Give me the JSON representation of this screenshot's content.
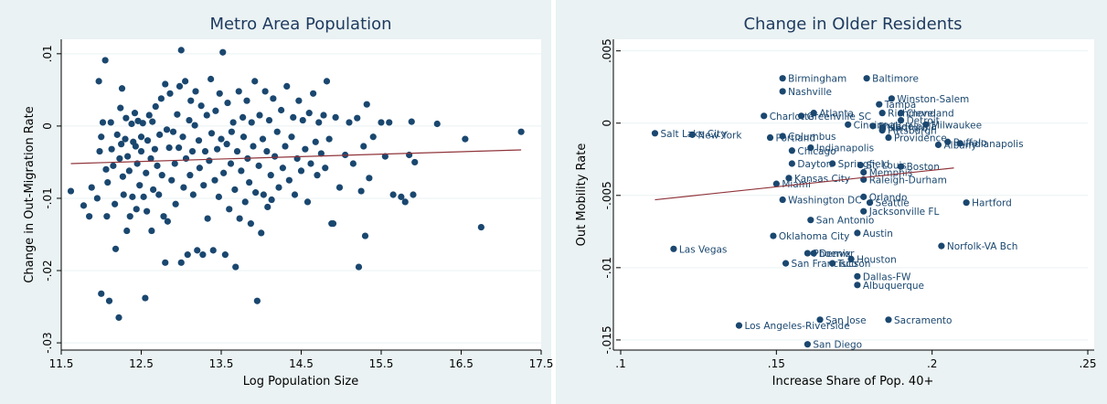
{
  "chart_data": [
    {
      "type": "scatter",
      "title": "Metro Area Population",
      "xlabel": "Log Population Size",
      "ylabel": "Change in Out-Migration Rate",
      "xlim": [
        11.5,
        17.5
      ],
      "ylim": [
        -0.031,
        0.012
      ],
      "xticks": [
        11.5,
        12.5,
        13.5,
        14.5,
        15.5,
        16.5,
        17.5
      ],
      "xtick_labels": [
        "11.5",
        "12.5",
        "13.5",
        "14.5",
        "15.5",
        "16.5",
        "17.5"
      ],
      "yticks": [
        -0.03,
        -0.02,
        -0.01,
        0,
        0.01
      ],
      "ytick_labels": [
        "-.03",
        "-.02",
        "-.01",
        "0",
        ".01"
      ],
      "grid": true,
      "fit_line": {
        "x": [
          11.62,
          17.25
        ],
        "y": [
          -0.0052,
          -0.0033
        ]
      },
      "points": [
        [
          11.62,
          -0.009
        ],
        [
          11.78,
          -0.011
        ],
        [
          11.85,
          -0.0125
        ],
        [
          11.88,
          -0.0085
        ],
        [
          11.95,
          -0.01
        ],
        [
          11.97,
          0.0062
        ],
        [
          11.98,
          -0.0035
        ],
        [
          12.0,
          -0.0232
        ],
        [
          12.0,
          -0.0015
        ],
        [
          12.02,
          0.0005
        ],
        [
          12.05,
          0.0091
        ],
        [
          12.06,
          -0.006
        ],
        [
          12.07,
          -0.0125
        ],
        [
          12.08,
          -0.0078
        ],
        [
          12.1,
          -0.0242
        ],
        [
          12.12,
          0.0005
        ],
        [
          12.13,
          -0.0032
        ],
        [
          12.15,
          -0.0055
        ],
        [
          12.17,
          -0.0108
        ],
        [
          12.18,
          -0.017
        ],
        [
          12.2,
          -0.0012
        ],
        [
          12.22,
          -0.0265
        ],
        [
          12.23,
          -0.0045
        ],
        [
          12.24,
          0.0025
        ],
        [
          12.25,
          -0.0025
        ],
        [
          12.26,
          0.0052
        ],
        [
          12.27,
          -0.007
        ],
        [
          12.28,
          -0.0095
        ],
        [
          12.3,
          -0.0018
        ],
        [
          12.31,
          0.0011
        ],
        [
          12.32,
          -0.0145
        ],
        [
          12.33,
          -0.0042
        ],
        [
          12.35,
          -0.0062
        ],
        [
          12.36,
          -0.0125
        ],
        [
          12.38,
          0.0003
        ],
        [
          12.39,
          -0.0098
        ],
        [
          12.4,
          -0.0022
        ],
        [
          12.42,
          0.0018
        ],
        [
          12.43,
          -0.0028
        ],
        [
          12.44,
          -0.0115
        ],
        [
          12.45,
          -0.0052
        ],
        [
          12.46,
          0.0007
        ],
        [
          12.48,
          -0.0082
        ],
        [
          12.5,
          -0.0035
        ],
        [
          12.5,
          -0.0015
        ],
        [
          12.52,
          0.0004
        ],
        [
          12.53,
          -0.0098
        ],
        [
          12.55,
          -0.0238
        ],
        [
          12.56,
          -0.0065
        ],
        [
          12.57,
          -0.0118
        ],
        [
          12.58,
          -0.002
        ],
        [
          12.6,
          0.0015
        ],
        [
          12.62,
          -0.0045
        ],
        [
          12.63,
          -0.0145
        ],
        [
          12.64,
          0.0006
        ],
        [
          12.65,
          -0.0088
        ],
        [
          12.67,
          -0.0032
        ],
        [
          12.68,
          0.0027
        ],
        [
          12.7,
          -0.0055
        ],
        [
          12.72,
          -0.0095
        ],
        [
          12.73,
          -0.0012
        ],
        [
          12.75,
          0.0038
        ],
        [
          12.76,
          -0.0068
        ],
        [
          12.78,
          -0.0125
        ],
        [
          12.8,
          0.0058
        ],
        [
          12.8,
          -0.0189
        ],
        [
          12.82,
          -0.0005
        ],
        [
          12.83,
          -0.0132
        ],
        [
          12.85,
          -0.003
        ],
        [
          12.86,
          0.0045
        ],
        [
          12.88,
          -0.0075
        ],
        [
          12.9,
          -0.0008
        ],
        [
          12.92,
          -0.0052
        ],
        [
          12.93,
          -0.0108
        ],
        [
          12.95,
          0.0016
        ],
        [
          12.97,
          -0.003
        ],
        [
          12.98,
          0.0055
        ],
        [
          13.0,
          0.0105
        ],
        [
          13.0,
          -0.0189
        ],
        [
          13.02,
          -0.0015
        ],
        [
          13.03,
          -0.0085
        ],
        [
          13.05,
          0.0062
        ],
        [
          13.06,
          -0.0045
        ],
        [
          13.08,
          -0.0178
        ],
        [
          13.1,
          0.0008
        ],
        [
          13.11,
          -0.0068
        ],
        [
          13.12,
          0.0035
        ],
        [
          13.14,
          -0.0035
        ],
        [
          13.15,
          -0.0095
        ],
        [
          13.17,
          0.0001
        ],
        [
          13.18,
          0.0048
        ],
        [
          13.2,
          -0.0172
        ],
        [
          13.22,
          -0.002
        ],
        [
          13.23,
          -0.0058
        ],
        [
          13.25,
          0.0028
        ],
        [
          13.27,
          -0.0178
        ],
        [
          13.28,
          -0.0082
        ],
        [
          13.3,
          -0.0035
        ],
        [
          13.32,
          0.0015
        ],
        [
          13.33,
          -0.0128
        ],
        [
          13.35,
          -0.0048
        ],
        [
          13.37,
          0.0065
        ],
        [
          13.38,
          -0.001
        ],
        [
          13.4,
          -0.0172
        ],
        [
          13.42,
          -0.0075
        ],
        [
          13.43,
          0.0021
        ],
        [
          13.45,
          -0.0032
        ],
        [
          13.47,
          -0.0098
        ],
        [
          13.48,
          0.0045
        ],
        [
          13.5,
          -0.0018
        ],
        [
          13.52,
          0.0102
        ],
        [
          13.53,
          -0.0065
        ],
        [
          13.55,
          -0.0178
        ],
        [
          13.57,
          -0.0025
        ],
        [
          13.58,
          0.0032
        ],
        [
          13.6,
          -0.0115
        ],
        [
          13.62,
          -0.0052
        ],
        [
          13.63,
          -0.0008
        ],
        [
          13.65,
          0.0005
        ],
        [
          13.67,
          -0.0088
        ],
        [
          13.68,
          -0.0195
        ],
        [
          13.7,
          -0.0035
        ],
        [
          13.72,
          0.0048
        ],
        [
          13.73,
          -0.0128
        ],
        [
          13.75,
          -0.0062
        ],
        [
          13.77,
          0.0012
        ],
        [
          13.78,
          -0.0015
        ],
        [
          13.8,
          -0.0105
        ],
        [
          13.82,
          0.0035
        ],
        [
          13.83,
          -0.0045
        ],
        [
          13.85,
          -0.0078
        ],
        [
          13.87,
          -0.0135
        ],
        [
          13.88,
          0.0005
        ],
        [
          13.9,
          -0.0028
        ],
        [
          13.92,
          0.0062
        ],
        [
          13.93,
          -0.0092
        ],
        [
          13.95,
          -0.0242
        ],
        [
          13.97,
          -0.0055
        ],
        [
          13.98,
          0.0015
        ],
        [
          14.0,
          -0.0148
        ],
        [
          14.02,
          -0.0018
        ],
        [
          14.03,
          -0.0095
        ],
        [
          14.05,
          0.0048
        ],
        [
          14.07,
          -0.0035
        ],
        [
          14.08,
          -0.0112
        ],
        [
          14.1,
          0.0008
        ],
        [
          14.12,
          -0.0068
        ],
        [
          14.13,
          -0.0102
        ],
        [
          14.15,
          0.0038
        ],
        [
          14.17,
          -0.0042
        ],
        [
          14.2,
          -0.0008
        ],
        [
          14.22,
          -0.0085
        ],
        [
          14.25,
          0.0022
        ],
        [
          14.27,
          -0.0058
        ],
        [
          14.3,
          -0.0028
        ],
        [
          14.32,
          0.0055
        ],
        [
          14.35,
          -0.0075
        ],
        [
          14.38,
          -0.0015
        ],
        [
          14.4,
          0.0012
        ],
        [
          14.42,
          -0.0095
        ],
        [
          14.45,
          -0.0045
        ],
        [
          14.47,
          0.0035
        ],
        [
          14.5,
          -0.0062
        ],
        [
          14.52,
          0.0008
        ],
        [
          14.55,
          -0.0032
        ],
        [
          14.58,
          -0.0105
        ],
        [
          14.6,
          0.0018
        ],
        [
          14.62,
          -0.0052
        ],
        [
          14.65,
          0.0045
        ],
        [
          14.68,
          -0.0022
        ],
        [
          14.7,
          -0.0068
        ],
        [
          14.72,
          0.0005
        ],
        [
          14.75,
          -0.0038
        ],
        [
          14.78,
          0.0015
        ],
        [
          14.8,
          -0.0058
        ],
        [
          14.82,
          0.0062
        ],
        [
          14.85,
          -0.0018
        ],
        [
          14.88,
          -0.0135
        ],
        [
          14.9,
          -0.0135
        ],
        [
          14.93,
          0.0012
        ],
        [
          14.98,
          -0.0085
        ],
        [
          15.05,
          -0.004
        ],
        [
          15.1,
          0.0005
        ],
        [
          15.15,
          -0.0052
        ],
        [
          15.2,
          0.0011
        ],
        [
          15.22,
          -0.0195
        ],
        [
          15.25,
          -0.009
        ],
        [
          15.28,
          -0.0028
        ],
        [
          15.3,
          -0.0152
        ],
        [
          15.32,
          0.003
        ],
        [
          15.35,
          -0.0072
        ],
        [
          15.4,
          -0.0015
        ],
        [
          15.5,
          0.0005
        ],
        [
          15.55,
          -0.0042
        ],
        [
          15.6,
          0.0005
        ],
        [
          15.65,
          -0.0095
        ],
        [
          15.75,
          -0.0098
        ],
        [
          15.8,
          -0.0105
        ],
        [
          15.85,
          -0.004
        ],
        [
          15.88,
          0.0006
        ],
        [
          15.9,
          -0.0095
        ],
        [
          15.92,
          -0.005
        ],
        [
          16.2,
          0.0003
        ],
        [
          16.55,
          -0.0018
        ],
        [
          16.75,
          -0.014
        ],
        [
          17.25,
          -0.0008
        ]
      ]
    },
    {
      "type": "scatter",
      "title": "Change in Older Residents",
      "xlabel": "Increase Share of Pop. 40+",
      "ylabel": "Out Mobility Rate",
      "xlim": [
        0.1,
        0.25
      ],
      "ylim": [
        -0.0157,
        0.0058
      ],
      "xticks": [
        0.1,
        0.15,
        0.2,
        0.25
      ],
      "xtick_labels": [
        ".1",
        ".15",
        ".2",
        ".25"
      ],
      "yticks": [
        -0.015,
        -0.01,
        -0.005,
        0,
        0.005
      ],
      "ytick_labels": [
        "-.015",
        "-.01",
        "-.005",
        "0",
        ".005"
      ],
      "grid": true,
      "fit_line": {
        "x": [
          0.111,
          0.207
        ],
        "y": [
          -0.0053,
          -0.0031
        ]
      },
      "points": [
        {
          "label": "Birmingham",
          "x": 0.152,
          "y": 0.0031
        },
        {
          "label": "Baltimore",
          "x": 0.179,
          "y": 0.0031
        },
        {
          "label": "Nashville",
          "x": 0.152,
          "y": 0.0022
        },
        {
          "label": "Winston-Salem",
          "x": 0.187,
          "y": 0.0017
        },
        {
          "label": "Tampa",
          "x": 0.183,
          "y": 0.0013
        },
        {
          "label": "Richmond",
          "x": 0.184,
          "y": 0.0007
        },
        {
          "label": "Cleveland",
          "x": 0.19,
          "y": 0.0007
        },
        {
          "label": "Atlanta",
          "x": 0.162,
          "y": 0.0007
        },
        {
          "label": "Charlotte",
          "x": 0.146,
          "y": 0.0005
        },
        {
          "label": "Greenville SC",
          "x": 0.158,
          "y": 0.0005
        },
        {
          "label": "Detroit",
          "x": 0.19,
          "y": 0.0002
        },
        {
          "label": "Milwaukee",
          "x": 0.198,
          "y": -0.0001
        },
        {
          "label": "Cincinnati",
          "x": 0.173,
          "y": -0.0001
        },
        {
          "label": "Philadelphia",
          "x": 0.181,
          "y": -0.0002
        },
        {
          "label": "Hartford?",
          "x": 0.184,
          "y": -0.0003
        },
        {
          "label": "Pittsburgh",
          "x": 0.184,
          "y": -0.0005
        },
        {
          "label": "Providence",
          "x": 0.186,
          "y": -0.001
        },
        {
          "label": "Salt Lake City",
          "x": 0.111,
          "y": -0.0007
        },
        {
          "label": "New York",
          "x": 0.123,
          "y": -0.0008
        },
        {
          "label": "Columbus",
          "x": 0.152,
          "y": -0.0009
        },
        {
          "label": "Portland",
          "x": 0.148,
          "y": -0.001
        },
        {
          "label": "Buffalo",
          "x": 0.205,
          "y": -0.0013
        },
        {
          "label": "Albany",
          "x": 0.202,
          "y": -0.0015
        },
        {
          "label": "Indianapolis",
          "x": 0.209,
          "y": -0.0014
        },
        {
          "label": "Indianapolis ",
          "x": 0.161,
          "y": -0.0017
        },
        {
          "label": "Chicago",
          "x": 0.155,
          "y": -0.0019
        },
        {
          "label": "Dayton",
          "x": 0.155,
          "y": -0.0028
        },
        {
          "label": "Springfield",
          "x": 0.168,
          "y": -0.0028
        },
        {
          "label": "St. Louis",
          "x": 0.177,
          "y": -0.0029
        },
        {
          "label": "Boston",
          "x": 0.19,
          "y": -0.003
        },
        {
          "label": "Memphis",
          "x": 0.178,
          "y": -0.0034
        },
        {
          "label": "Kansas City",
          "x": 0.154,
          "y": -0.0038
        },
        {
          "label": "Raleigh-Durham",
          "x": 0.178,
          "y": -0.0039
        },
        {
          "label": "Miami",
          "x": 0.15,
          "y": -0.0042
        },
        {
          "label": "Orlando",
          "x": 0.178,
          "y": -0.0051
        },
        {
          "label": "Washington DC",
          "x": 0.152,
          "y": -0.0053
        },
        {
          "label": "Seattle",
          "x": 0.18,
          "y": -0.0055
        },
        {
          "label": "Hartford",
          "x": 0.211,
          "y": -0.0055
        },
        {
          "label": "Jacksonville FL",
          "x": 0.178,
          "y": -0.0061
        },
        {
          "label": "San Antonio",
          "x": 0.161,
          "y": -0.0067
        },
        {
          "label": "Austin",
          "x": 0.176,
          "y": -0.0076
        },
        {
          "label": "Oklahoma City",
          "x": 0.149,
          "y": -0.0078
        },
        {
          "label": "Las Vegas",
          "x": 0.117,
          "y": -0.0087
        },
        {
          "label": "Norfolk-VA Bch",
          "x": 0.203,
          "y": -0.0085
        },
        {
          "label": "Phoenix",
          "x": 0.16,
          "y": -0.009
        },
        {
          "label": "Denver",
          "x": 0.162,
          "y": -0.009
        },
        {
          "label": "Houston",
          "x": 0.174,
          "y": -0.0094
        },
        {
          "label": "San Francisco",
          "x": 0.153,
          "y": -0.0097
        },
        {
          "label": "Tucson",
          "x": 0.168,
          "y": -0.0097
        },
        {
          "label": "Dallas-FW",
          "x": 0.176,
          "y": -0.0106
        },
        {
          "label": "Albuquerque",
          "x": 0.176,
          "y": -0.0112
        },
        {
          "label": "San Jose",
          "x": 0.164,
          "y": -0.0136
        },
        {
          "label": "Sacramento",
          "x": 0.186,
          "y": -0.0136
        },
        {
          "label": "Los Angeles-Riverside",
          "x": 0.138,
          "y": -0.014
        },
        {
          "label": "San Diego",
          "x": 0.16,
          "y": -0.0153
        }
      ]
    }
  ]
}
